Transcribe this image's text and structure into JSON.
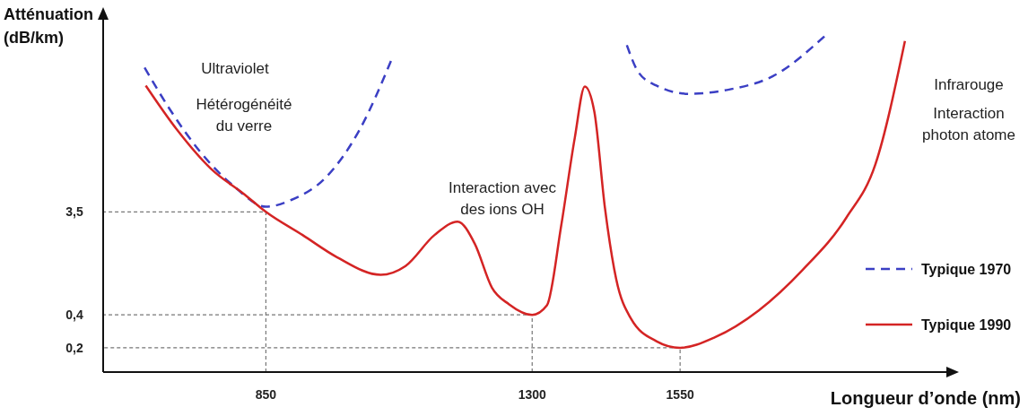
{
  "chart_data": {
    "type": "line",
    "xlabel": "Longueur d’onde (nm)",
    "ylabel": "Atténuation\n(dB/km)",
    "log": "y",
    "xlim": [
      575,
      2000
    ],
    "xticks": [
      850,
      1300,
      1550
    ],
    "ylim": [
      0.12,
      200
    ],
    "yticks": [
      {
        "value": 0.2,
        "label": "0,2"
      },
      {
        "value": 0.4,
        "label": "0,4"
      },
      {
        "value": 3.5,
        "label": "3,5"
      }
    ],
    "grid": false,
    "legend": "right",
    "series": [
      {
        "name": "Typique 1970",
        "color": "#3b3fc4",
        "line_style": "dashed",
        "x": [
          645,
          690,
          738,
          796,
          850,
          893,
          951,
          1009,
          1063,
          1200,
          1460,
          1479,
          1510,
          1565,
          1633,
          1707,
          1794
        ],
        "values": [
          73,
          29,
          12.6,
          6.0,
          3.9,
          4.5,
          7.2,
          20,
          88,
          null,
          117,
          67,
          50,
          42,
          46,
          61,
          141
        ]
      },
      {
        "type": "line",
        "color": "#777777",
        "line_style": "dotted",
        "x": [
          850,
          850,
          575
        ],
        "values": [
          0.12,
          3.5,
          3.5
        ]
      },
      {
        "type": "line",
        "color": "#777777",
        "line_style": "dotted",
        "x": [
          1300,
          1300,
          575
        ],
        "values": [
          0.12,
          0.4,
          0.4
        ]
      },
      {
        "type": "line",
        "color": "#777777",
        "line_style": "dotted",
        "x": [
          1550,
          1550,
          575
        ],
        "values": [
          0.12,
          0.2,
          0.2
        ]
      },
      {
        "name": "Typique 1990",
        "color": "#d42424",
        "line_style": "solid",
        "x": [
          647,
          699,
          757,
          815,
          850,
          912,
          970,
          1044,
          1086,
          1135,
          1174,
          1203,
          1232,
          1261,
          1300,
          1325,
          1349,
          1372,
          1389,
          1405,
          1423,
          1442,
          1467,
          1510,
          1550,
          1609,
          1683,
          1757,
          1831,
          1880,
          1930
        ],
        "values": [
          50,
          20,
          8.7,
          5.0,
          3.5,
          2.15,
          1.35,
          0.93,
          1.12,
          2.15,
          2.85,
          1.79,
          0.71,
          0.5,
          0.4,
          0.49,
          2.6,
          16.6,
          49,
          29,
          3.8,
          0.85,
          0.37,
          0.23,
          0.2,
          0.25,
          0.44,
          1.03,
          3.1,
          9.5,
          128
        ]
      }
    ],
    "annotations": [
      "Ultraviolet",
      "Hétérogénéité\ndu verre",
      "Interaction avec\ndes ions OH",
      "Infrarouge",
      "Interaction\nphoton atome"
    ]
  }
}
